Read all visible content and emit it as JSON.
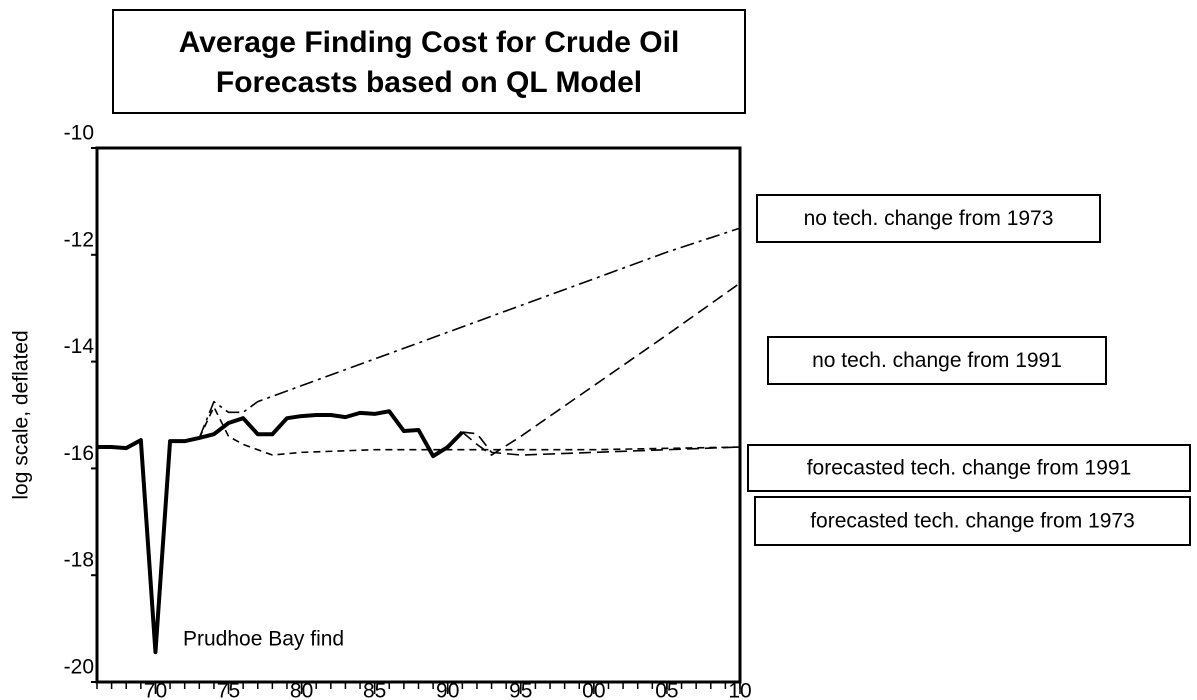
{
  "chart_data": {
    "type": "line",
    "title": [
      "Average Finding Cost for Crude Oil",
      "Forecasts based on QL Model"
    ],
    "y_label": "log scale, deflated",
    "annotation": "Prudhoe Bay find",
    "xlim": [
      1966,
      2010
    ],
    "ylim": [
      -20,
      -10
    ],
    "yticks": [
      -10,
      -12,
      -14,
      -16,
      -18,
      -20
    ],
    "xticks": [
      {
        "value": 1970,
        "label": "70"
      },
      {
        "value": 1975,
        "label": "75"
      },
      {
        "value": 1980,
        "label": "80"
      },
      {
        "value": 1985,
        "label": "85"
      },
      {
        "value": 1990,
        "label": "90"
      },
      {
        "value": 1995,
        "label": "95"
      },
      {
        "value": 2000,
        "label": "00"
      },
      {
        "value": 2005,
        "label": "05"
      },
      {
        "value": 2010,
        "label": "10"
      }
    ],
    "xminorticks": [
      1966,
      1967,
      1968,
      1969,
      1970,
      1971,
      1972,
      1973,
      1974,
      1975,
      1976,
      1977,
      1978,
      1979,
      1980,
      1981,
      1982,
      1983,
      1984,
      1985,
      1986,
      1987,
      1988,
      1989,
      1990,
      1991,
      1992,
      1993,
      1994,
      1995,
      1996,
      1997,
      1998,
      1999,
      2000,
      2001,
      2002,
      2003,
      2004,
      2005,
      2006,
      2007,
      2008,
      2009,
      2010
    ],
    "series": [
      {
        "color": "#000000",
        "style": "solid",
        "x": [
          1966,
          1967,
          1968,
          1969,
          1970,
          1971,
          1972,
          1973,
          1974,
          1975,
          1976,
          1977,
          1978,
          1979,
          1980,
          1981,
          1982,
          1983,
          1984,
          1985,
          1986,
          1987,
          1988,
          1989,
          1990,
          1991
        ],
        "values": [
          -15.6,
          -15.6,
          -15.62,
          -15.47,
          -19.44,
          -15.49,
          -15.49,
          -15.43,
          -15.36,
          -15.15,
          -15.06,
          -15.36,
          -15.36,
          -15.06,
          -15.02,
          -15.0,
          -15.0,
          -15.04,
          -14.96,
          -14.98,
          -14.93,
          -15.3,
          -15.28,
          -15.77,
          -15.6,
          -15.32
        ]
      },
      {
        "name": "no tech. change from 1973",
        "color": "#000000",
        "style": "dashdot",
        "x": [
          1973,
          1974,
          1975,
          1976,
          1977,
          1980,
          1985,
          1990,
          1995,
          2000,
          2005,
          2010
        ],
        "values": [
          -15.43,
          -14.75,
          -14.95,
          -14.95,
          -14.75,
          -14.45,
          -13.95,
          -13.45,
          -12.95,
          -12.45,
          -11.95,
          -11.5
        ]
      },
      {
        "name": "no tech. change from 1991",
        "color": "#000000",
        "style": "dashed",
        "x": [
          1991,
          1992,
          1993,
          1995,
          2000,
          2005,
          2010
        ],
        "values": [
          -15.32,
          -15.55,
          -15.75,
          -15.4,
          -14.45,
          -13.5,
          -12.53
        ]
      },
      {
        "name": "forecasted tech. change from 1991",
        "color": "#000000",
        "style": "dashed",
        "x": [
          1991,
          1992,
          1993,
          1995,
          2000,
          2005,
          2010
        ],
        "values": [
          -15.32,
          -15.35,
          -15.7,
          -15.75,
          -15.7,
          -15.65,
          -15.6
        ]
      },
      {
        "name": "forecasted tech. change from 1973",
        "color": "#000000",
        "style": "shortdash",
        "x": [
          1973,
          1974,
          1975,
          1976,
          1978,
          1980,
          1985,
          1990,
          2000,
          2010
        ],
        "values": [
          -15.43,
          -14.85,
          -15.4,
          -15.55,
          -15.75,
          -15.7,
          -15.65,
          -15.65,
          -15.65,
          -15.6
        ]
      }
    ]
  }
}
